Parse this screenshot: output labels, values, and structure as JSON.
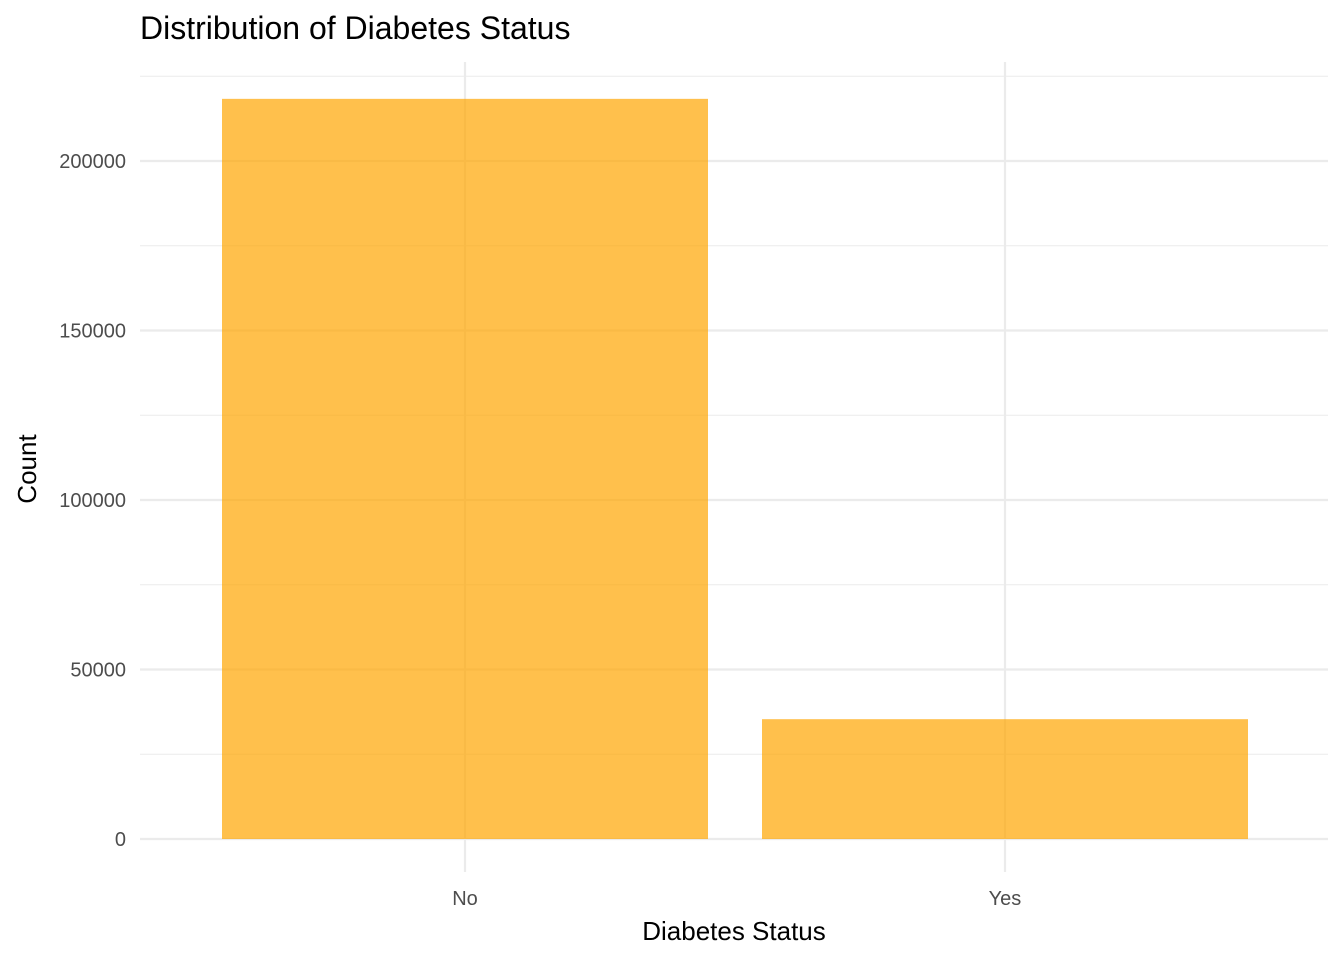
{
  "chart_data": {
    "type": "bar",
    "title": "Distribution of Diabetes Status",
    "xlabel": "Diabetes Status",
    "ylabel": "Count",
    "categories": [
      "No",
      "Yes"
    ],
    "values": [
      218334,
      35346
    ],
    "ylim": [
      -2000,
      225000
    ],
    "yticks": [
      0,
      50000,
      100000,
      150000,
      200000
    ],
    "ytick_labels": [
      "0",
      "50000",
      "100000",
      "150000",
      "200000"
    ],
    "grid": true,
    "legend": "none",
    "bar_color": "#FFA500",
    "bar_opacity": 0.7,
    "grid_color": "#EBEBEB"
  }
}
